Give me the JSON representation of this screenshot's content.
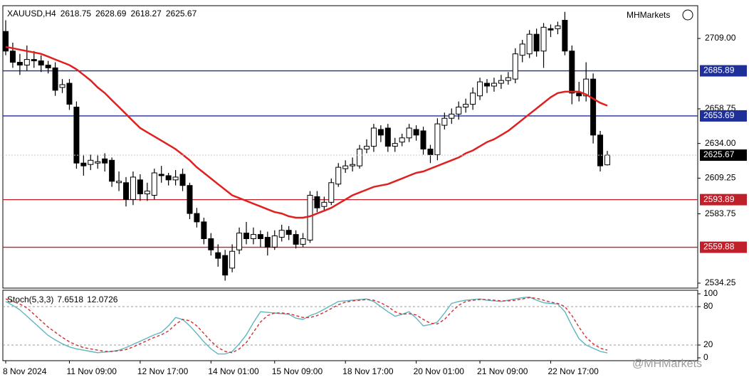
{
  "chart_data": [
    {
      "type": "candlestick",
      "title": "XAUUSD,H4",
      "brand": "MHMarkets",
      "watermark": "@MHMarkets",
      "categories": [
        "8 Nov 2024",
        null,
        null,
        null,
        null,
        null,
        null,
        null,
        null,
        "11 Nov 09:00",
        null,
        null,
        null,
        null,
        null,
        null,
        null,
        null,
        null,
        "12 Nov 17:00",
        null,
        null,
        null,
        null,
        null,
        null,
        null,
        null,
        null,
        "14 Nov 01:00",
        null,
        null,
        null,
        null,
        null,
        null,
        null,
        null,
        "15 Nov 09:00",
        null,
        null,
        null,
        null,
        null,
        null,
        null,
        null,
        null,
        "18 Nov 17:00",
        null,
        null,
        null,
        null,
        null,
        null,
        null,
        null,
        null,
        "20 Nov 01:00",
        null,
        null,
        null,
        null,
        null,
        null,
        null,
        null,
        "21 Nov 09:00",
        null,
        null,
        null,
        null,
        null,
        null,
        null,
        null,
        null,
        "22 Nov 17:00",
        null,
        null,
        null,
        null,
        null,
        null,
        null,
        null
      ],
      "open": [
        2714,
        2700,
        2692,
        2690,
        2694,
        2693,
        2690,
        2688,
        2674,
        2677,
        2660,
        2620,
        2619,
        2620,
        2623,
        2622,
        2606,
        2606,
        2594,
        2608,
        2598,
        2597,
        2612,
        2611,
        2608,
        2612,
        2604,
        2584,
        2578,
        2566,
        2556,
        2554,
        2545,
        2558,
        2570,
        2566,
        2569,
        2567,
        2560,
        2567,
        2572,
        2569,
        2562,
        2565,
        2596,
        2589,
        2592,
        2605,
        2616,
        2618,
        2618,
        2630,
        2632,
        2644,
        2645,
        2632,
        2635,
        2638,
        2644,
        2643,
        2630,
        2626,
        2647,
        2652,
        2655,
        2660,
        2662,
        2668,
        2677,
        2675,
        2677,
        2679,
        2680,
        2697,
        2698,
        2712,
        2700,
        2716,
        2716,
        2722,
        2700,
        2670,
        2668,
        2680,
        2640,
        2618.75
      ],
      "high": [
        2722,
        2706,
        2698,
        2704,
        2700,
        2697,
        2693,
        2692,
        2680,
        2680,
        2664,
        2626,
        2626,
        2626,
        2627,
        2624,
        2614,
        2610,
        2614,
        2612,
        2606,
        2616,
        2618,
        2613,
        2615,
        2616,
        2606,
        2588,
        2581,
        2570,
        2562,
        2558,
        2562,
        2574,
        2578,
        2574,
        2572,
        2571,
        2572,
        2576,
        2575,
        2572,
        2570,
        2600,
        2600,
        2596,
        2609,
        2620,
        2622,
        2624,
        2633,
        2637,
        2648,
        2647,
        2648,
        2638,
        2641,
        2648,
        2647,
        2646,
        2633,
        2652,
        2656,
        2659,
        2664,
        2666,
        2674,
        2681,
        2680,
        2681,
        2683,
        2685,
        2702,
        2708,
        2715,
        2716,
        2720,
        2719,
        2721,
        2728,
        2704,
        2678,
        2692,
        2684,
        2643,
        2628.69
      ],
      "low": [
        2697,
        2688,
        2683,
        2686,
        2688,
        2685,
        2684,
        2668,
        2670,
        2658,
        2616,
        2611,
        2615,
        2616,
        2614,
        2603,
        2600,
        2589,
        2590,
        2593,
        2593,
        2594,
        2606,
        2604,
        2604,
        2600,
        2580,
        2574,
        2562,
        2554,
        2546,
        2536,
        2542,
        2555,
        2562,
        2562,
        2560,
        2554,
        2558,
        2564,
        2565,
        2559,
        2560,
        2563,
        2585,
        2586,
        2590,
        2603,
        2613,
        2614,
        2616,
        2627,
        2628,
        2635,
        2628,
        2628,
        2632,
        2635,
        2636,
        2626,
        2620,
        2622,
        2644,
        2648,
        2651,
        2656,
        2658,
        2665,
        2670,
        2671,
        2673,
        2676,
        2677,
        2692,
        2695,
        2696,
        2688,
        2710,
        2712,
        2697,
        2662,
        2664,
        2664,
        2634,
        2614,
        2618.27
      ],
      "close": [
        2700,
        2692,
        2690,
        2694,
        2693,
        2690,
        2688,
        2672,
        2676,
        2662,
        2620,
        2618,
        2622,
        2621,
        2620,
        2607,
        2607,
        2594,
        2610,
        2598,
        2600,
        2613,
        2611,
        2608,
        2610,
        2604,
        2584,
        2578,
        2566,
        2558,
        2552,
        2540,
        2557,
        2570,
        2566,
        2569,
        2566,
        2560,
        2568,
        2572,
        2569,
        2562,
        2566,
        2597,
        2588,
        2592,
        2606,
        2617,
        2618,
        2619,
        2630,
        2632,
        2645,
        2640,
        2632,
        2634,
        2638,
        2645,
        2640,
        2630,
        2626,
        2648,
        2652,
        2655,
        2660,
        2662,
        2670,
        2678,
        2675,
        2677,
        2679,
        2681,
        2698,
        2705,
        2712,
        2700,
        2717,
        2715,
        2718,
        2700,
        2670,
        2668,
        2680,
        2640,
        2618,
        2625.67
      ],
      "up_color": "#ffffff",
      "down_color": "#000000",
      "series": [
        {
          "color": "#e0201f",
          "values": [
            2703,
            2702,
            2701,
            2700,
            2699,
            2698,
            2696,
            2694,
            2692,
            2690,
            2687,
            2683,
            2679,
            2674,
            2670,
            2665,
            2660,
            2655,
            2650,
            2645,
            2642,
            2639,
            2636,
            2633,
            2630,
            2626,
            2622,
            2617,
            2613,
            2609,
            2605,
            2601,
            2597,
            2595,
            2593,
            2591,
            2589,
            2587,
            2585,
            2584,
            2582,
            2581,
            2581,
            2582,
            2584,
            2586,
            2588,
            2591,
            2594,
            2597,
            2599,
            2601,
            2603,
            2604,
            2605,
            2607,
            2609,
            2611,
            2613,
            2614,
            2616,
            2618,
            2620,
            2622,
            2624,
            2627,
            2629,
            2632,
            2635,
            2637,
            2640,
            2643,
            2647,
            2651,
            2655,
            2659,
            2663,
            2667,
            2670,
            2671,
            2671,
            2671,
            2669,
            2666,
            2663,
            2661
          ]
        }
      ],
      "hlines": [
        {
          "value": 2685.89,
          "color": "#1f2f9a"
        },
        {
          "value": 2653.69,
          "color": "#1f2f9a"
        },
        {
          "value": 2593.89,
          "color": "#c0202a"
        },
        {
          "value": 2559.88,
          "color": "#c0202a"
        }
      ],
      "ylim": [
        2530.7,
        2732.4
      ],
      "yticks": [
        {
          "value": 2709,
          "label": "2709.00"
        },
        {
          "value": 2658.75,
          "label": "2658.75"
        },
        {
          "value": 2634,
          "label": "2634.00"
        },
        {
          "value": 2609.25,
          "label": "2609.25"
        },
        {
          "value": 2583.75,
          "label": "2583.75"
        },
        {
          "value": 2534.25,
          "label": "2534.25"
        }
      ]
    },
    {
      "type": "line",
      "title": "Stoch(5,3,3)",
      "series": [
        {
          "color": "#5fb5c0",
          "dashed": false,
          "values": [
            88,
            82,
            75,
            65,
            55,
            45,
            35,
            28,
            22,
            17,
            14,
            12,
            10,
            8,
            9,
            10,
            12,
            16,
            21,
            26,
            31,
            36,
            40,
            50,
            63,
            60,
            50,
            38,
            25,
            14,
            6,
            6,
            10,
            22,
            36,
            55,
            72,
            71,
            70,
            69,
            68,
            62,
            60,
            66,
            70,
            76,
            82,
            88,
            89,
            90,
            91,
            92,
            88,
            80,
            72,
            65,
            68,
            72,
            62,
            50,
            52,
            56,
            70,
            85,
            88,
            90,
            91,
            92,
            90,
            89,
            88,
            90,
            92,
            94,
            95,
            90,
            86,
            85,
            84,
            72,
            50,
            30,
            20,
            15,
            10,
            7.6518
          ]
        },
        {
          "color": "#d03030",
          "dashed": true,
          "values": [
            92,
            88,
            84,
            78,
            68,
            58,
            48,
            40,
            32,
            25,
            20,
            16,
            14,
            12,
            10,
            10,
            11,
            13,
            17,
            22,
            27,
            32,
            36,
            42,
            52,
            60,
            58,
            50,
            38,
            26,
            16,
            10,
            8,
            14,
            24,
            40,
            56,
            66,
            70,
            70,
            69,
            66,
            63,
            63,
            66,
            71,
            77,
            83,
            87,
            89,
            90,
            91,
            90,
            86,
            80,
            72,
            68,
            69,
            67,
            60,
            54,
            53,
            60,
            72,
            82,
            88,
            90,
            91,
            91,
            90,
            89,
            89,
            90,
            92,
            94,
            93,
            90,
            87,
            85,
            80,
            66,
            48,
            32,
            22,
            15,
            12.0726
          ]
        }
      ],
      "ylim": [
        0,
        100
      ],
      "yticks": [
        100,
        80,
        20,
        0
      ],
      "levels": [
        80,
        20
      ]
    }
  ]
}
